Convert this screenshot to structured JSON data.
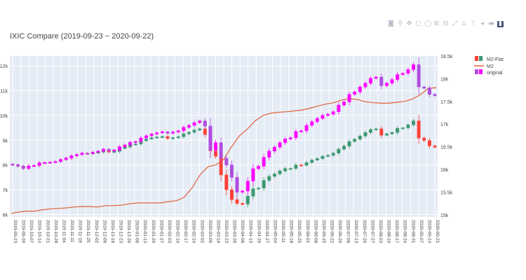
{
  "modebar": {
    "icons": [
      "camera-icon",
      "zoom-icon",
      "pan-icon",
      "box-select-icon",
      "lasso-icon",
      "zoom-in-icon",
      "zoom-out-icon",
      "autoscale-icon",
      "reset-axes-icon",
      "spike-lines-icon",
      "hover-closest-icon",
      "hover-compare-icon",
      "plotly-logo-icon"
    ]
  },
  "chart_data": {
    "type": "candlestick",
    "title": "IXIC Compare (2019-09-23 ~ 2020-09-22)",
    "xlabel": "",
    "ylabel_left": "",
    "ylabel_right": "",
    "grid": true,
    "legend_position": "top-right",
    "y_left_range": [
      5900,
      12400
    ],
    "y_left_ticks": [
      6000,
      7000,
      8000,
      9000,
      10000,
      11000,
      12000
    ],
    "y_left_ticklabels": [
      "6k",
      "7k",
      "8k",
      "9k",
      "10k",
      "11k",
      "12k"
    ],
    "y_right_range": [
      14950,
      18500
    ],
    "y_right_ticks": [
      15000,
      15500,
      16000,
      16500,
      17000,
      17500,
      18000,
      18500
    ],
    "y_right_ticklabels": [
      "15k",
      "15.5k",
      "16k",
      "16.5k",
      "17k",
      "17.5k",
      "18k",
      "18.5k"
    ],
    "x_ticklabels": [
      "2019-09-23",
      "2019-09-30",
      "2019-10-07",
      "2019-10-14",
      "2019-10-21",
      "2019-10-28",
      "2019-11-04",
      "2019-11-11",
      "2019-11-18",
      "2019-11-25",
      "2019-12-02",
      "2019-12-09",
      "2019-12-16",
      "2019-12-23",
      "2019-12-30",
      "2020-01-06",
      "2020-01-13",
      "2020-01-20",
      "2020-01-27",
      "2020-02-03",
      "2020-02-10",
      "2020-02-17",
      "2020-02-24",
      "2020-03-02",
      "2020-03-09",
      "2020-03-16",
      "2020-03-23",
      "2020-03-30",
      "2020-04-06",
      "2020-04-13",
      "2020-04-20",
      "2020-04-27",
      "2020-05-04",
      "2020-05-11",
      "2020-05-18",
      "2020-05-25",
      "2020-06-01",
      "2020-06-08",
      "2020-06-15",
      "2020-06-22",
      "2020-06-29",
      "2020-07-06",
      "2020-07-13",
      "2020-07-20",
      "2020-07-27",
      "2020-08-03",
      "2020-08-10",
      "2020-08-17",
      "2020-08-24",
      "2020-08-31",
      "2020-09-07",
      "2020-09-14",
      "2020-09-21"
    ],
    "legend": [
      "M2-Flat",
      "M2",
      "original"
    ],
    "colors": {
      "increasing_a": "#3d9970",
      "decreasing_a": "#ff4136",
      "increasing_b": "#ff00ff",
      "decreasing_b": "#b04ce0",
      "m2_line": "#e0603a"
    },
    "series": [
      {
        "name": "original",
        "kind": "candlestick",
        "axis": "left",
        "close": [
          8010,
          7950,
          7860,
          7960,
          7980,
          8090,
          8100,
          8110,
          8140,
          8220,
          8280,
          8370,
          8420,
          8480,
          8470,
          8520,
          8560,
          8640,
          8570,
          8610,
          8740,
          8810,
          8920,
          8950,
          9090,
          9180,
          9250,
          9300,
          9340,
          9280,
          9330,
          9380,
          9520,
          9600,
          9710,
          9780,
          9570,
          8600,
          8900,
          8270,
          8000,
          7500,
          6900,
          6950,
          7350,
          7850,
          7950,
          8310,
          8560,
          8720,
          8900,
          9050,
          9100,
          9350,
          9380,
          9600,
          9750,
          9880,
          10000,
          10050,
          10150,
          10420,
          10550,
          10850,
          10950,
          11150,
          11300,
          11500,
          11550,
          11200,
          11300,
          11450,
          11650,
          11700,
          11850,
          12050,
          11150,
          11100,
          10850,
          10800
        ]
      },
      {
        "name": "M2-Flat",
        "kind": "candlestick",
        "axis": "left",
        "close": [
          8010,
          7950,
          7860,
          7960,
          7980,
          8090,
          8100,
          8110,
          8140,
          8220,
          8280,
          8370,
          8420,
          8470,
          8450,
          8490,
          8520,
          8590,
          8520,
          8550,
          8670,
          8730,
          8830,
          8850,
          8980,
          9050,
          9100,
          9130,
          9150,
          9070,
          9100,
          9140,
          9260,
          9320,
          9410,
          9460,
          9230,
          8570,
          8350,
          7600,
          7000,
          6600,
          6450,
          6420,
          6740,
          7040,
          7070,
          7380,
          7540,
          7640,
          7760,
          7860,
          7860,
          8000,
          7990,
          8100,
          8200,
          8260,
          8350,
          8390,
          8480,
          8640,
          8760,
          8950,
          9040,
          9170,
          9310,
          9430,
          9460,
          9200,
          9260,
          9310,
          9480,
          9500,
          9620,
          9780,
          9090,
          8990,
          8770,
          8720
        ]
      },
      {
        "name": "M2",
        "kind": "line",
        "axis": "right",
        "values": [
          15030,
          15060,
          15080,
          15080,
          15110,
          15130,
          15140,
          15150,
          15170,
          15180,
          15180,
          15170,
          15200,
          15200,
          15210,
          15240,
          15260,
          15260,
          15260,
          15260,
          15290,
          15310,
          15390,
          15600,
          15880,
          16060,
          16100,
          16220,
          16500,
          16740,
          16890,
          17070,
          17190,
          17240,
          17260,
          17270,
          17290,
          17310,
          17350,
          17400,
          17440,
          17470,
          17530,
          17560,
          17540,
          17490,
          17470,
          17460,
          17460,
          17480,
          17500,
          17550,
          17650,
          17790,
          17800
        ]
      }
    ]
  }
}
